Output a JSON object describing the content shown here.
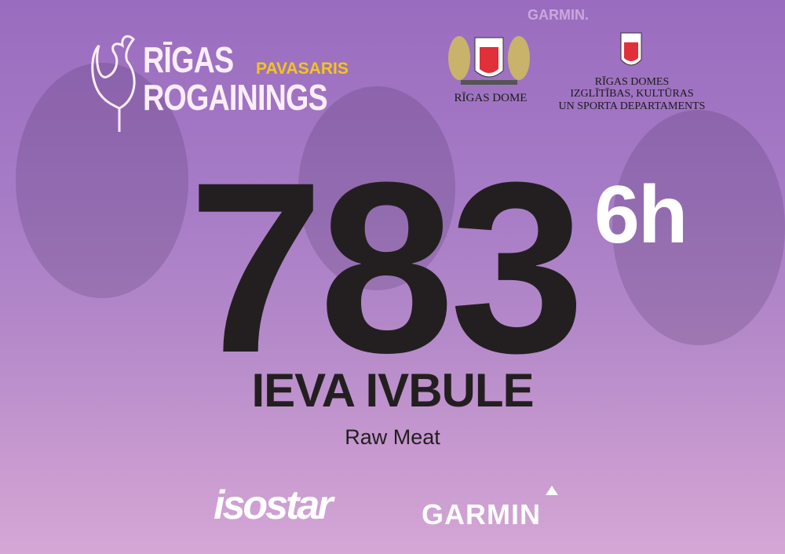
{
  "event": {
    "logo_line1": "RĪGAS",
    "logo_line2": "ROGAININGS",
    "logo_tag": "PAVASARIS"
  },
  "partners": {
    "rigas_dome": "RĪGAS DOME",
    "department_line1": "RĪGAS DOMES",
    "department_line2": "IZGLĪTĪBAS, KULTŪRAS",
    "department_line3": "UN SPORTA DEPARTAMENTS"
  },
  "bib": {
    "number": "783",
    "duration": "6h",
    "name": "IEVA IVBULE",
    "team": "Raw Meat"
  },
  "sponsors": {
    "isostar": "isostar",
    "garmin": "GARMIN",
    "garmin_background": "GARMIN."
  },
  "colors": {
    "background": "#a67bc6",
    "number": "#231f20",
    "accent": "#f5c518"
  }
}
